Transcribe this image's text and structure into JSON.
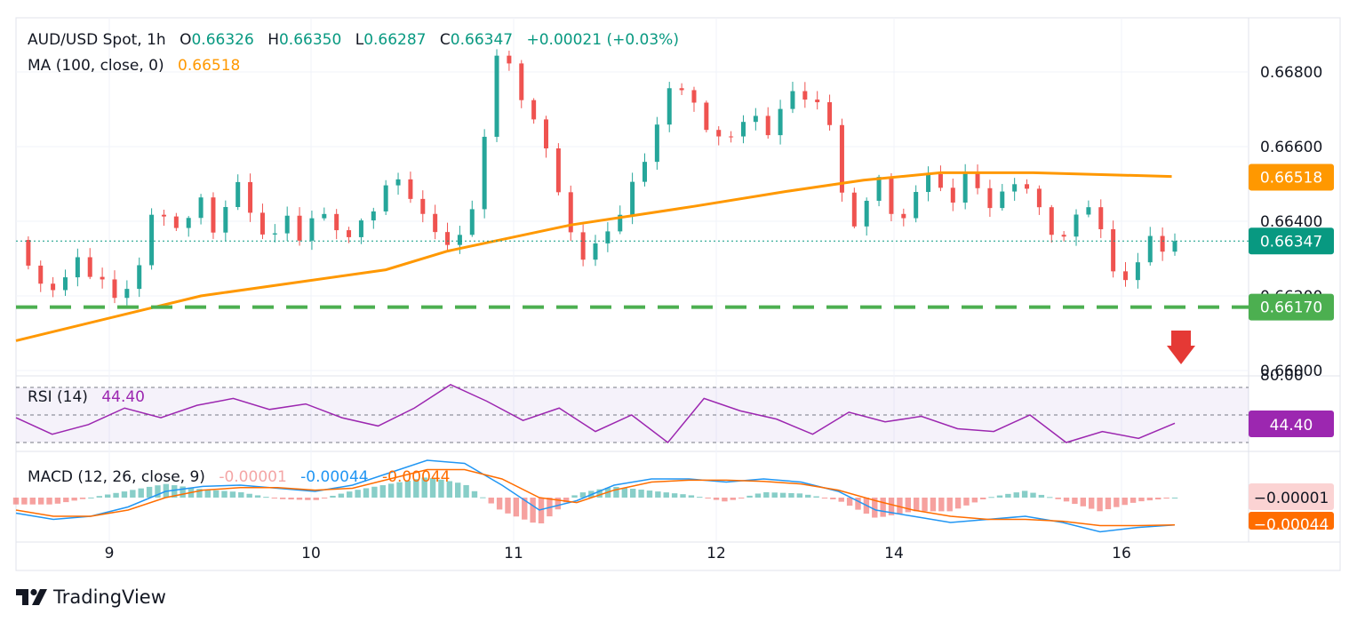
{
  "header": {
    "symbol": "AUD/USD Spot, 1h",
    "o_label": "O",
    "o_value": "0.66326",
    "h_label": "H",
    "h_value": "0.66350",
    "l_label": "L",
    "l_value": "0.66287",
    "c_label": "C",
    "c_value": "0.66347",
    "change": "+0.00021 (+0.03%)",
    "ma_label": "MA (100, close, 0)",
    "ma_value": "0.66518"
  },
  "rsi": {
    "label": "RSI (14)",
    "value": "44.40",
    "axis_top": "80.00"
  },
  "macd": {
    "label": "MACD (12, 26, close, 9)",
    "hist_value": "-0.00001",
    "macd_value": "-0.00044",
    "signal_value": "-0.00044",
    "axis_hist": "−0.00001",
    "axis_signal": "−0.00044"
  },
  "price_axis": {
    "ticks": [
      "0.66800",
      "0.66600",
      "0.66400",
      "0.66200",
      "0.66000"
    ]
  },
  "badges": {
    "ma": "0.66518",
    "last": "0.66347",
    "support": "0.66170"
  },
  "x_axis": {
    "labels": [
      "9",
      "10",
      "11",
      "12",
      "14",
      "16"
    ]
  },
  "brand": {
    "name": "TradingView"
  },
  "colors": {
    "up": "#26a69a",
    "down": "#ef5350",
    "ma": "#ff9800",
    "support": "#4caf50",
    "rsi": "#9c27b0",
    "macd": "#2196f3",
    "signal": "#ff6d00",
    "arrow": "#e53935"
  },
  "chart_data": [
    {
      "type": "candlestick",
      "title": "AUD/USD Spot, 1h",
      "x_ticks": [
        "9",
        "10",
        "11",
        "12",
        "14",
        "16"
      ],
      "y_ticks": [
        0.668,
        0.666,
        0.664,
        0.662,
        0.66
      ],
      "ylim": [
        0.6597,
        0.6688
      ],
      "last_close": 0.66347,
      "ma100_last": 0.66518,
      "support_level": 0.6617,
      "close_path": [
        [
          0,
          0.6635
        ],
        [
          4,
          0.6628
        ],
        [
          8,
          0.6621
        ],
        [
          12,
          0.6619
        ],
        [
          16,
          0.6624
        ],
        [
          20,
          0.6628
        ],
        [
          24,
          0.6626
        ],
        [
          28,
          0.6625
        ],
        [
          32,
          0.6621
        ],
        [
          36,
          0.6625
        ],
        [
          40,
          0.6629
        ],
        [
          44,
          0.6644
        ],
        [
          48,
          0.6641
        ],
        [
          52,
          0.6637
        ],
        [
          56,
          0.664
        ],
        [
          60,
          0.6643
        ],
        [
          64,
          0.6636
        ],
        [
          68,
          0.6642
        ],
        [
          72,
          0.665
        ],
        [
          76,
          0.6644
        ],
        [
          80,
          0.6637
        ],
        [
          84,
          0.664
        ],
        [
          88,
          0.6643
        ],
        [
          92,
          0.6636
        ],
        [
          96,
          0.6642
        ],
        [
          100,
          0.664
        ],
        [
          104,
          0.6637
        ],
        [
          108,
          0.6633
        ],
        [
          112,
          0.6638
        ],
        [
          116,
          0.6642
        ],
        [
          120,
          0.6648
        ],
        [
          124,
          0.6653
        ],
        [
          128,
          0.6647
        ],
        [
          132,
          0.6644
        ],
        [
          136,
          0.664
        ],
        [
          140,
          0.6634
        ],
        [
          144,
          0.6638
        ],
        [
          148,
          0.6642
        ],
        [
          152,
          0.6661
        ],
        [
          156,
          0.6683
        ],
        [
          160,
          0.6679
        ],
        [
          164,
          0.6672
        ],
        [
          168,
          0.6666
        ],
        [
          172,
          0.666
        ],
        [
          176,
          0.665
        ],
        [
          180,
          0.6638
        ],
        [
          184,
          0.6633
        ],
        [
          188,
          0.6635
        ],
        [
          192,
          0.6638
        ],
        [
          196,
          0.6642
        ],
        [
          200,
          0.6648
        ],
        [
          204,
          0.6655
        ],
        [
          208,
          0.6663
        ],
        [
          212,
          0.6674
        ],
        [
          216,
          0.6675
        ],
        [
          220,
          0.6671
        ],
        [
          224,
          0.6667
        ],
        [
          228,
          0.6664
        ],
        [
          232,
          0.6665
        ],
        [
          236,
          0.6669
        ],
        [
          240,
          0.6668
        ],
        [
          244,
          0.6664
        ],
        [
          248,
          0.6668
        ],
        [
          252,
          0.6673
        ],
        [
          256,
          0.6671
        ],
        [
          260,
          0.6669
        ],
        [
          264,
          0.6666
        ],
        [
          268,
          0.6647
        ],
        [
          272,
          0.664
        ],
        [
          276,
          0.6648
        ],
        [
          280,
          0.6653
        ],
        [
          284,
          0.6645
        ],
        [
          288,
          0.6641
        ],
        [
          292,
          0.6648
        ],
        [
          296,
          0.6652
        ],
        [
          300,
          0.6646
        ],
        [
          304,
          0.6644
        ],
        [
          308,
          0.665
        ],
        [
          312,
          0.6648
        ],
        [
          316,
          0.6644
        ],
        [
          320,
          0.6648
        ],
        [
          324,
          0.6653
        ],
        [
          328,
          0.665
        ],
        [
          332,
          0.6646
        ],
        [
          336,
          0.6638
        ],
        [
          340,
          0.6635
        ],
        [
          344,
          0.6642
        ],
        [
          348,
          0.6641
        ],
        [
          352,
          0.6636
        ],
        [
          356,
          0.6625
        ],
        [
          360,
          0.6622
        ],
        [
          364,
          0.663
        ],
        [
          368,
          0.6636
        ],
        [
          372,
          0.6634
        ],
        [
          376,
          0.6635
        ]
      ],
      "ma100": [
        [
          0,
          0.6608
        ],
        [
          60,
          0.662
        ],
        [
          120,
          0.6627
        ],
        [
          140,
          0.6632
        ],
        [
          180,
          0.6639
        ],
        [
          220,
          0.6644
        ],
        [
          250,
          0.6648
        ],
        [
          275,
          0.6651
        ],
        [
          300,
          0.6653
        ],
        [
          330,
          0.6653
        ],
        [
          375,
          0.6652
        ]
      ]
    },
    {
      "type": "line",
      "name": "RSI (14)",
      "last_value": 44.4,
      "levels": [
        70,
        50,
        30
      ],
      "values": [
        48,
        36,
        43,
        55,
        48,
        57,
        62,
        54,
        58,
        48,
        42,
        55,
        72,
        60,
        46,
        55,
        38,
        50,
        30,
        62,
        53,
        47,
        36,
        52,
        45,
        49,
        40,
        38,
        50,
        30,
        38,
        33,
        44
      ]
    },
    {
      "type": "line",
      "name": "MACD (12, 26, close, 9)",
      "last_values": {
        "histogram": -1e-05,
        "macd": -0.00044,
        "signal": -0.00044
      },
      "macd": [
        -0.00025,
        -0.00035,
        -0.0003,
        -0.00015,
        0.0001,
        0.00018,
        0.0002,
        0.00015,
        0.0001,
        0.0002,
        0.0004,
        0.0006,
        0.00055,
        0.0002,
        -0.0002,
        -5e-05,
        0.0002,
        0.0003,
        0.0003,
        0.00025,
        0.0003,
        0.00025,
        0.0001,
        -0.0002,
        -0.0003,
        -0.0004,
        -0.00035,
        -0.0003,
        -0.0004,
        -0.00055,
        -0.00048,
        -0.00044
      ],
      "signal": [
        -0.0002,
        -0.0003,
        -0.0003,
        -0.0002,
        0.0,
        0.00012,
        0.00016,
        0.00016,
        0.00012,
        0.00015,
        0.0003,
        0.00045,
        0.00045,
        0.0003,
        0.0,
        -8e-05,
        0.00012,
        0.00025,
        0.00028,
        0.00028,
        0.00026,
        0.00022,
        0.00012,
        -5e-05,
        -0.0002,
        -0.0003,
        -0.00035,
        -0.00035,
        -0.00038,
        -0.00045,
        -0.00045,
        -0.00044
      ]
    }
  ]
}
